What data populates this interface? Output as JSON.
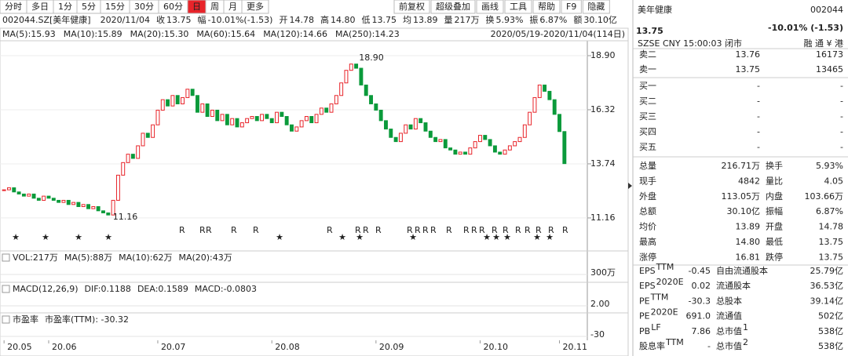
{
  "toolbar": {
    "tabs": [
      "分时",
      "多日",
      "1分",
      "5分",
      "15分",
      "30分",
      "60分",
      "日",
      "周",
      "月",
      "更多"
    ],
    "active": "日",
    "buttons": [
      "前复权",
      "超级叠加",
      "画线",
      "工具",
      "帮助",
      "F9",
      "隐藏"
    ]
  },
  "quote_line": {
    "symbol": "002044.SZ[美年健康]",
    "date": "2020/11/04",
    "items": [
      {
        "label": "收",
        "value": "13.75",
        "color": "#0b9a3b"
      },
      {
        "label": "幅",
        "value": "-10.01%(-1.53)",
        "color": "#0b9a3b"
      },
      {
        "label": "开",
        "value": "14.78",
        "color": "#e8242a"
      },
      {
        "label": "高",
        "value": "14.80",
        "color": "#e8242a"
      },
      {
        "label": "低",
        "value": "13.75",
        "color": "#0b9a3b"
      },
      {
        "label": "均",
        "value": "13.89",
        "color": "#e8242a"
      },
      {
        "label": "量",
        "value": "217万",
        "color": "#222222"
      },
      {
        "label": "换",
        "value": "5.93%",
        "color": "#222222"
      },
      {
        "label": "振",
        "value": "6.87%",
        "color": "#222222"
      },
      {
        "label": "额",
        "value": "30.10亿",
        "color": "#222222"
      }
    ]
  },
  "chart_data": {
    "type": "candlestick",
    "ma_legend": [
      {
        "text": "MA(5):15.93",
        "color": "#d62f6b"
      },
      {
        "text": "MA(10):15.89",
        "color": "#2553d8"
      },
      {
        "text": "MA(20):15.30",
        "color": "#1a2fa0"
      },
      {
        "text": "MA(60):15.64",
        "color": "#22aec4"
      },
      {
        "text": "MA(120):14.66",
        "color": "#2ca02c"
      },
      {
        "text": "MA(250):14.23",
        "color": "#c23ad0"
      }
    ],
    "range_label": "2020/05/19-2020/11/04(114日)",
    "values": [
      12.5,
      12.6,
      12.4,
      12.3,
      12.2,
      12.3,
      12.1,
      12.0,
      12.2,
      12.1,
      12.0,
      11.9,
      12.0,
      11.8,
      11.9,
      11.7,
      11.8,
      11.6,
      11.7,
      11.5,
      11.4,
      11.3,
      12.0,
      13.2,
      13.8,
      14.2,
      14.0,
      14.6,
      15.2,
      15.0,
      15.6,
      16.3,
      16.8,
      16.5,
      17.0,
      16.6,
      16.9,
      17.3,
      17.0,
      16.2,
      16.6,
      16.0,
      16.3,
      15.8,
      16.1,
      15.6,
      15.9,
      15.5,
      15.7,
      15.9,
      16.0,
      15.8,
      16.1,
      15.9,
      15.7,
      16.2,
      16.0,
      15.6,
      15.3,
      15.5,
      15.8,
      16.0,
      15.7,
      16.1,
      16.4,
      16.2,
      16.6,
      17.0,
      17.6,
      18.2,
      18.5,
      18.3,
      17.5,
      17.0,
      16.6,
      16.3,
      15.8,
      15.4,
      15.0,
      14.8,
      15.2,
      15.6,
      15.4,
      15.9,
      15.7,
      15.3,
      15.0,
      14.8,
      14.9,
      14.5,
      14.4,
      14.2,
      14.3,
      14.2,
      14.5,
      14.8,
      15.1,
      14.9,
      14.6,
      14.3,
      14.2,
      14.4,
      14.6,
      14.8,
      15.0,
      15.6,
      16.2,
      16.9,
      17.5,
      17.2,
      16.8,
      16.1,
      15.28,
      13.75
    ],
    "up_color": "#e8242a",
    "down_color": "#0b9a3b",
    "xlim": [
      -0.5,
      113.5
    ],
    "xticks": [
      {
        "value": 0,
        "label": "20.05"
      },
      {
        "value": 9,
        "label": "20.06"
      },
      {
        "value": 31,
        "label": "20.07"
      },
      {
        "value": 54,
        "label": "20.08"
      },
      {
        "value": 75,
        "label": "20.09"
      },
      {
        "value": 96,
        "label": "20.10"
      },
      {
        "value": 112,
        "label": "20.11"
      }
    ],
    "ylim": [
      9.96,
      19.61
    ],
    "yticks": [
      {
        "value": 11.16,
        "label": "11.16"
      },
      {
        "value": 13.74,
        "label": "13.74"
      },
      {
        "value": 16.32,
        "label": "16.32"
      },
      {
        "value": 18.9,
        "label": "18.90"
      }
    ],
    "high_label": "18.90",
    "low_label": "11.16",
    "signal_label": "R"
  },
  "panels": [
    {
      "items": [
        {
          "text": "VOL:217万",
          "color": "#222222"
        },
        {
          "text": "MA(5):88万",
          "color": "#2553d8"
        },
        {
          "text": "MA(10):62万",
          "color": "#d62f6b"
        },
        {
          "text": "MA(20):43万",
          "color": "#2553d8"
        }
      ],
      "axis_label": "300万"
    },
    {
      "items": [
        {
          "text": "MACD(12,26,9)",
          "color": "#222222"
        },
        {
          "text": "DIF:0.1188",
          "color": "#222222"
        },
        {
          "text": "DEA:0.1589",
          "color": "#d62f6b"
        },
        {
          "text": "MACD:-0.0803",
          "color": "#2553d8"
        }
      ],
      "axis_label": "2.00"
    },
    {
      "items": [
        {
          "text": "市盈率",
          "color": "#222222"
        },
        {
          "text": "市盈率(TTM): -30.32",
          "color": "#d62f6b"
        }
      ],
      "axis_label": "-30"
    }
  ],
  "quote_panel": {
    "name": "美年健康",
    "code": "002044",
    "price": "13.75",
    "change": "-10.01% (-1.53)",
    "status": "SZSE  CNY  15:00:03  闭市",
    "badges": "融 通 ¥ 港",
    "order_book": [
      [
        "卖二",
        "13.76",
        "16173"
      ],
      [
        "卖一",
        "13.75",
        "13465"
      ],
      [
        "买一",
        "-",
        "-"
      ],
      [
        "买二",
        "-",
        "-"
      ],
      [
        "买三",
        "-",
        "-"
      ],
      [
        "买四",
        "-",
        "-"
      ],
      [
        "买五",
        "-",
        "-"
      ]
    ],
    "stats": [
      [
        {
          "label": "总量",
          "value": "216.71万",
          "color": "#222222"
        },
        {
          "label": "换手",
          "value": "5.93%",
          "color": "#222222"
        }
      ],
      [
        {
          "label": "现手",
          "value": "4842",
          "color": "#222222"
        },
        {
          "label": "量比",
          "value": "4.05",
          "color": "#222222"
        }
      ],
      [
        {
          "label": "外盘",
          "value": "113.05万",
          "color": "#e8242a"
        },
        {
          "label": "内盘",
          "value": "103.66万",
          "color": "#0b9a3b"
        }
      ],
      [
        {
          "label": "总额",
          "value": "30.10亿",
          "color": "#222222"
        },
        {
          "label": "振幅",
          "value": "6.87%",
          "color": "#222222"
        }
      ],
      [
        {
          "label": "均价",
          "value": "13.89",
          "color": "#e8242a"
        },
        {
          "label": "开盘",
          "value": "14.78",
          "color": "#e8242a"
        }
      ],
      [
        {
          "label": "最高",
          "value": "14.80",
          "color": "#e8242a"
        },
        {
          "label": "最低",
          "value": "13.75",
          "color": "#0b9a3b"
        }
      ],
      [
        {
          "label": "涨停",
          "value": "16.81",
          "color": "#e8242a"
        },
        {
          "label": "跌停",
          "value": "13.75",
          "color": "#0b9a3b"
        }
      ]
    ],
    "fundamentals": [
      [
        {
          "label": "EPS",
          "sup": "TTM",
          "value": "-0.45"
        },
        {
          "label": "自由流通股本",
          "value": "25.79亿"
        }
      ],
      [
        {
          "label": "EPS",
          "sup": "2020E",
          "value": "0.02"
        },
        {
          "label": "流通股本",
          "value": "36.53亿"
        }
      ],
      [
        {
          "label": "PE",
          "sup": "TTM",
          "value": "-30.3"
        },
        {
          "label": "总股本",
          "value": "39.14亿"
        }
      ],
      [
        {
          "label": "PE",
          "sup": "2020E",
          "value": "691.0"
        },
        {
          "label": "流通值",
          "value": "502亿"
        }
      ],
      [
        {
          "label": "PB",
          "sup": "LF",
          "value": "7.86"
        },
        {
          "label": "总市值",
          "sup": "1",
          "value": "538亿"
        }
      ],
      [
        {
          "label": "股息率",
          "sup": "TTM",
          "value": "-"
        },
        {
          "label": "总市值",
          "sup": "2",
          "value": "538亿"
        }
      ]
    ]
  }
}
